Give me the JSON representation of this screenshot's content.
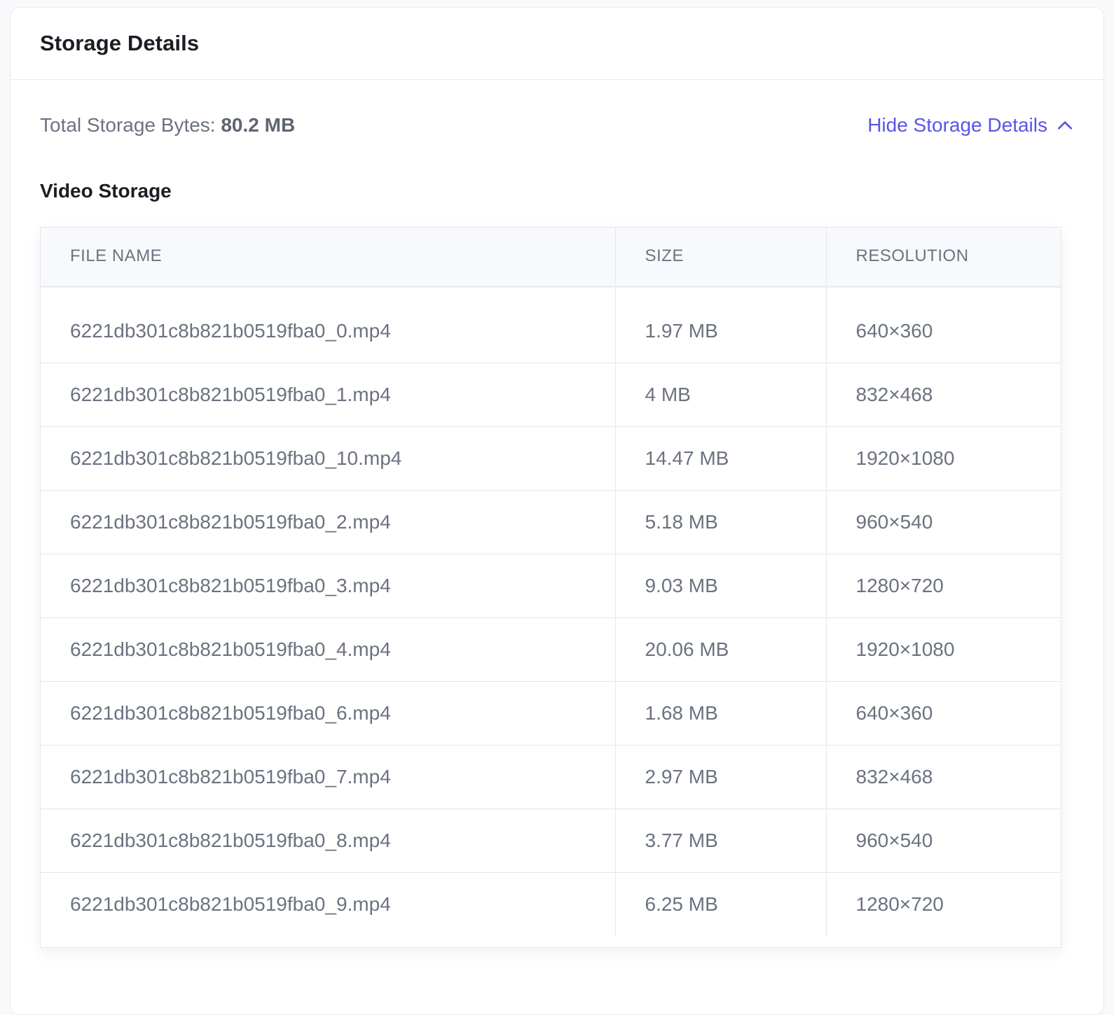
{
  "header": {
    "title": "Storage Details"
  },
  "summary": {
    "total_label": "Total Storage Bytes:",
    "total_value": "80.2 MB",
    "toggle_label": "Hide Storage Details",
    "toggle_icon": "chevron-up-icon",
    "accent_color": "#5b54e6"
  },
  "video_storage": {
    "title": "Video Storage",
    "columns": [
      "FILE NAME",
      "SIZE",
      "RESOLUTION"
    ],
    "rows": [
      {
        "file": "6221db301c8b821b0519fba0_0.mp4",
        "size": "1.97 MB",
        "resolution": "640×360"
      },
      {
        "file": "6221db301c8b821b0519fba0_1.mp4",
        "size": "4 MB",
        "resolution": "832×468"
      },
      {
        "file": "6221db301c8b821b0519fba0_10.mp4",
        "size": "14.47 MB",
        "resolution": "1920×1080"
      },
      {
        "file": "6221db301c8b821b0519fba0_2.mp4",
        "size": "5.18 MB",
        "resolution": "960×540"
      },
      {
        "file": "6221db301c8b821b0519fba0_3.mp4",
        "size": "9.03 MB",
        "resolution": "1280×720"
      },
      {
        "file": "6221db301c8b821b0519fba0_4.mp4",
        "size": "20.06 MB",
        "resolution": "1920×1080"
      },
      {
        "file": "6221db301c8b821b0519fba0_6.mp4",
        "size": "1.68 MB",
        "resolution": "640×360"
      },
      {
        "file": "6221db301c8b821b0519fba0_7.mp4",
        "size": "2.97 MB",
        "resolution": "832×468"
      },
      {
        "file": "6221db301c8b821b0519fba0_8.mp4",
        "size": "3.77 MB",
        "resolution": "960×540"
      },
      {
        "file": "6221db301c8b821b0519fba0_9.mp4",
        "size": "6.25 MB",
        "resolution": "1280×720"
      }
    ]
  }
}
